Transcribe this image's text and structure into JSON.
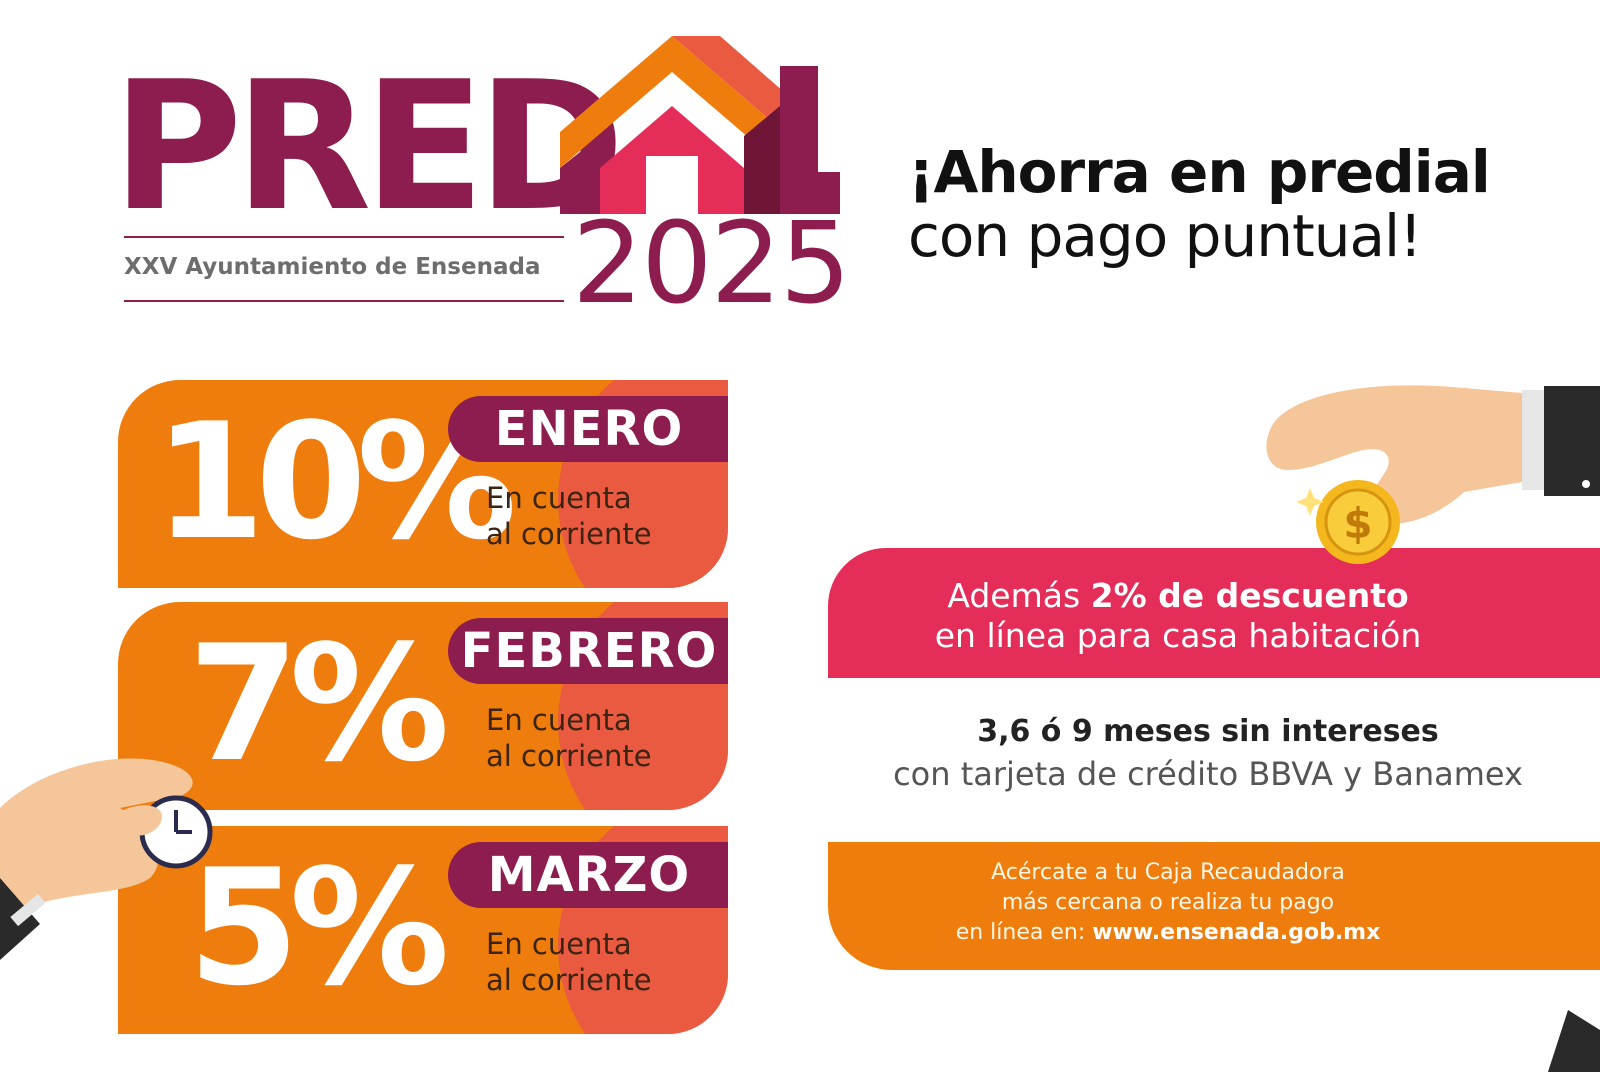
{
  "logo": {
    "word": "PRED",
    "organization": "XXV Ayuntamiento de Ensenada",
    "year": "2025"
  },
  "headline": {
    "line1": "¡Ahorra en predial",
    "line2": "con pago puntual!"
  },
  "discounts": [
    {
      "percent": "10%",
      "month": "ENERO",
      "note_line1": "En cuenta",
      "note_line2": "al corriente"
    },
    {
      "percent": "7%",
      "month": "FEBRERO",
      "note_line1": "En cuenta",
      "note_line2": "al corriente"
    },
    {
      "percent": "5%",
      "month": "MARZO",
      "note_line1": "En cuenta",
      "note_line2": "al corriente"
    }
  ],
  "online_discount": {
    "prefix": "Además ",
    "highlight": "2% de descuento",
    "line2": "en línea para casa habitación"
  },
  "installments": {
    "line1": "3,6 ó 9 meses sin intereses",
    "line2": "con tarjeta de crédito BBVA y Banamex"
  },
  "payment_info": {
    "line1": "Acércate a tu Caja Recaudadora",
    "line2": "más cercana o realiza tu pago",
    "line3_prefix": "en línea en:  ",
    "url": "www.ensenada.gob.mx"
  },
  "icons": {
    "house": "house-icon",
    "coin": "dollar-coin-icon",
    "clock": "clock-icon"
  },
  "colors": {
    "brand_maroon": "#8e1d4f",
    "orange": "#ef7d0e",
    "coral": "#e95a40",
    "pink": "#e52d59",
    "coin_gold": "#f4b71d"
  }
}
